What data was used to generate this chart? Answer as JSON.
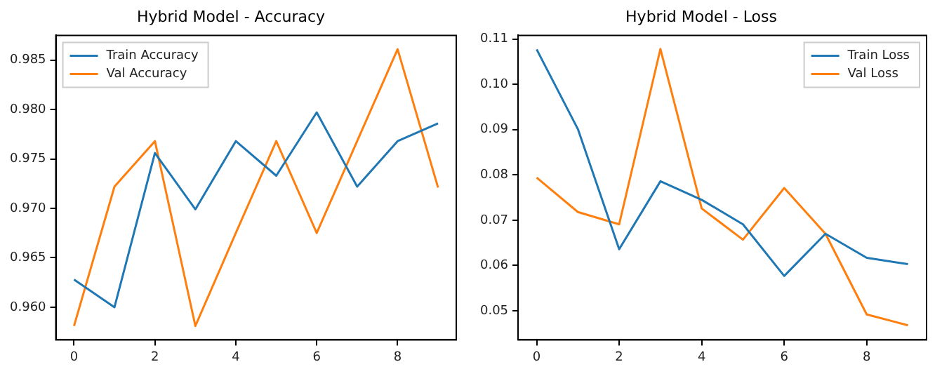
{
  "chart_data": [
    {
      "type": "line",
      "title": "Hybrid Model - Accuracy",
      "x": [
        0,
        1,
        2,
        3,
        4,
        5,
        6,
        7,
        8,
        9
      ],
      "xlim": [
        -0.45,
        9.45
      ],
      "xticks": [
        0,
        2,
        4,
        6,
        8
      ],
      "ylim": [
        0.9567,
        0.9875
      ],
      "yticks": [
        {
          "value": 0.96,
          "label": "0.960"
        },
        0.965,
        {
          "value": 0.97,
          "label": "0.970"
        },
        0.975,
        {
          "value": 0.98,
          "label": "0.980"
        },
        0.985
      ],
      "grid": false,
      "legend": "top left",
      "series": [
        {
          "name": "Train Accuracy",
          "color": "#1f77b4",
          "values": [
            0.9628,
            0.96,
            0.9756,
            0.9699,
            0.9768,
            0.9733,
            0.9797,
            0.9722,
            0.9768,
            0.9786
          ]
        },
        {
          "name": "Val Accuracy",
          "color": "#ff7f0e",
          "values": [
            0.9581,
            0.9722,
            0.9768,
            0.9581,
            0.9675,
            0.9768,
            0.9675,
            0.9768,
            0.9861,
            0.9721
          ]
        }
      ]
    },
    {
      "type": "line",
      "title": "Hybrid Model - Loss",
      "x": [
        0,
        1,
        2,
        3,
        4,
        5,
        6,
        7,
        8,
        9
      ],
      "xlim": [
        -0.45,
        9.45
      ],
      "xticks": [
        0,
        2,
        4,
        6,
        8
      ],
      "ylim": [
        0.0436,
        0.1108
      ],
      "yticks": [
        0.05,
        0.06,
        0.07,
        0.08,
        0.09,
        {
          "value": 0.1,
          "label": "0.10"
        },
        0.11
      ],
      "grid": false,
      "legend": "top right",
      "series": [
        {
          "name": "Train Loss",
          "color": "#1f77b4",
          "values": [
            0.1077,
            0.0901,
            0.0636,
            0.0786,
            0.0745,
            0.0691,
            0.0577,
            0.067,
            0.0617,
            0.0603
          ]
        },
        {
          "name": "Val Loss",
          "color": "#ff7f0e",
          "values": [
            0.0794,
            0.0718,
            0.0691,
            0.1078,
            0.0726,
            0.0657,
            0.0771,
            0.067,
            0.0492,
            0.0468
          ]
        }
      ]
    }
  ]
}
